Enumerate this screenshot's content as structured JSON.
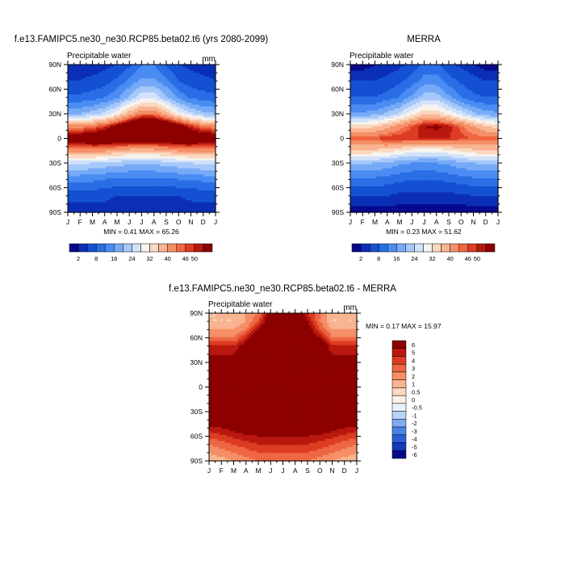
{
  "chart_data": [
    {
      "type": "heatmap",
      "title": "f.e13.FAMIPC5.ne30_ne30.RCP85.beta02.t6 (yrs 2080-2099)",
      "subtitle": "Precipitable water",
      "units": "mm",
      "stats": "MIN =   0.41 MAX =  65.26",
      "x_ticks": [
        "J",
        "F",
        "M",
        "A",
        "M",
        "J",
        "J",
        "A",
        "S",
        "O",
        "N",
        "D",
        "J"
      ],
      "y_ticks": [
        "90N",
        "60N",
        "30N",
        "0",
        "30S",
        "60S",
        "90S"
      ],
      "ylim": [
        -90,
        90
      ],
      "colorbar": {
        "levels": [
          "2",
          "8",
          "16",
          "24",
          "32",
          "40",
          "46",
          "50"
        ],
        "colors": [
          "#08088c",
          "#0a2fb6",
          "#1450d2",
          "#2a6ee6",
          "#4a8cf2",
          "#76aaf6",
          "#a6c8fa",
          "#d2e2fa",
          "#f7f4ee",
          "#fbd8c0",
          "#f9b491",
          "#f58f67",
          "#ee6642",
          "#dc3c22",
          "#b8180e",
          "#8c0000"
        ]
      },
      "lat": [
        -90,
        -70,
        -50,
        -30,
        -15,
        0,
        15,
        30,
        50,
        70,
        90
      ],
      "months": [
        0,
        1,
        2,
        3,
        4,
        5,
        6,
        7,
        8,
        9,
        10,
        11,
        12
      ],
      "values": [
        [
          2,
          2,
          2,
          2,
          2,
          2,
          2,
          2,
          2,
          2,
          2,
          2,
          2
        ],
        [
          5,
          5,
          5,
          5,
          4,
          4,
          4,
          4,
          4,
          4,
          5,
          5,
          5
        ],
        [
          13,
          13,
          13,
          12,
          11,
          11,
          11,
          11,
          11,
          12,
          12,
          13,
          13
        ],
        [
          25,
          25,
          24,
          23,
          22,
          21,
          21,
          21,
          22,
          23,
          24,
          25,
          25
        ],
        [
          42,
          42,
          42,
          41,
          39,
          38,
          38,
          38,
          39,
          41,
          42,
          42,
          42
        ],
        [
          55,
          55,
          56,
          57,
          57,
          56,
          56,
          56,
          57,
          57,
          56,
          55,
          55
        ],
        [
          42,
          42,
          44,
          47,
          52,
          57,
          60,
          60,
          58,
          54,
          48,
          44,
          42
        ],
        [
          20,
          20,
          22,
          25,
          31,
          39,
          44,
          44,
          38,
          30,
          25,
          21,
          20
        ],
        [
          9,
          9,
          10,
          12,
          15,
          21,
          27,
          27,
          21,
          15,
          11,
          10,
          9
        ],
        [
          4,
          4,
          5,
          6,
          9,
          13,
          17,
          17,
          13,
          8,
          6,
          5,
          4
        ],
        [
          2,
          2,
          2,
          3,
          4,
          7,
          12,
          12,
          7,
          4,
          3,
          2,
          2
        ]
      ]
    },
    {
      "type": "heatmap",
      "title": "MERRA",
      "subtitle": "Precipitable water",
      "stats": "MIN =   0.23 MAX =  51.62",
      "x_ticks": [
        "J",
        "F",
        "M",
        "A",
        "M",
        "J",
        "J",
        "A",
        "S",
        "O",
        "N",
        "D",
        "J"
      ],
      "y_ticks": [
        "90N",
        "60N",
        "30N",
        "0",
        "30S",
        "60S",
        "90S"
      ],
      "ylim": [
        -90,
        90
      ],
      "colorbar": {
        "levels": [
          "2",
          "8",
          "16",
          "24",
          "32",
          "40",
          "46",
          "50"
        ],
        "colors": [
          "#08088c",
          "#0a2fb6",
          "#1450d2",
          "#2a6ee6",
          "#4a8cf2",
          "#76aaf6",
          "#a6c8fa",
          "#d2e2fa",
          "#f7f4ee",
          "#fbd8c0",
          "#f9b491",
          "#f58f67",
          "#ee6642",
          "#dc3c22",
          "#b8180e",
          "#8c0000"
        ]
      },
      "lat": [
        -90,
        -70,
        -50,
        -30,
        -15,
        0,
        15,
        30,
        50,
        70,
        90
      ],
      "months": [
        0,
        1,
        2,
        3,
        4,
        5,
        6,
        7,
        8,
        9,
        10,
        11,
        12
      ],
      "values": [
        [
          1,
          1,
          1,
          1,
          1,
          1,
          1,
          1,
          1,
          1,
          1,
          1,
          1
        ],
        [
          4,
          4,
          4,
          4,
          3,
          3,
          3,
          3,
          3,
          3,
          4,
          4,
          4
        ],
        [
          11,
          11,
          11,
          10,
          9,
          8,
          8,
          8,
          9,
          10,
          11,
          11,
          11
        ],
        [
          21,
          21,
          20,
          19,
          17,
          16,
          16,
          16,
          17,
          19,
          20,
          21,
          21
        ],
        [
          36,
          36,
          35,
          34,
          32,
          30,
          29,
          29,
          31,
          33,
          35,
          36,
          36
        ],
        [
          45,
          45,
          46,
          48,
          48,
          48,
          48,
          48,
          48,
          47,
          46,
          45,
          45
        ],
        [
          34,
          34,
          35,
          38,
          42,
          46,
          50,
          51,
          49,
          45,
          40,
          36,
          34
        ],
        [
          17,
          17,
          18,
          21,
          25,
          31,
          35,
          35,
          31,
          26,
          21,
          18,
          17
        ],
        [
          8,
          8,
          8,
          10,
          12,
          17,
          22,
          22,
          17,
          12,
          9,
          8,
          8
        ],
        [
          4,
          4,
          4,
          5,
          7,
          10,
          14,
          14,
          10,
          7,
          5,
          4,
          4
        ],
        [
          1,
          1,
          2,
          2,
          3,
          5,
          9,
          9,
          5,
          3,
          2,
          1,
          1
        ]
      ]
    },
    {
      "type": "heatmap",
      "title": "f.e13.FAMIPC5.ne30_ne30.RCP85.beta02.t6 - MERRA",
      "subtitle": "Precipitable water",
      "units": "mm",
      "stats": "MIN =   0.17 MAX =  15.97",
      "x_ticks": [
        "J",
        "F",
        "M",
        "A",
        "M",
        "J",
        "J",
        "A",
        "S",
        "O",
        "N",
        "D",
        "J"
      ],
      "y_ticks": [
        "90N",
        "60N",
        "30N",
        "0",
        "30S",
        "60S",
        "90S"
      ],
      "ylim": [
        -90,
        90
      ],
      "colorbar": {
        "levels": [
          "6",
          "5",
          "4",
          "3",
          "2",
          "1",
          "0.5",
          "0",
          "-0.5",
          "-1",
          "-2",
          "-3",
          "-4",
          "-5",
          "-6"
        ],
        "colors": [
          "#8c0000",
          "#b8180e",
          "#dc3c22",
          "#ee6642",
          "#f58f67",
          "#f9b491",
          "#fbd8c0",
          "#fdf0e6",
          "#eaf0fb",
          "#b8d2f6",
          "#80aaf2",
          "#4a82e6",
          "#2a5ed6",
          "#1438b6",
          "#08088c"
        ]
      },
      "lat": [
        -90,
        -70,
        -50,
        -40,
        -30,
        -10,
        10,
        30,
        50,
        60,
        70,
        80,
        90
      ],
      "months": [
        0,
        1,
        2,
        3,
        4,
        5,
        6,
        7,
        8,
        9,
        10,
        11,
        12
      ],
      "values": [
        [
          1.2,
          1.5,
          2,
          2.5,
          3,
          3,
          3,
          3,
          3,
          2.5,
          2,
          1.5,
          1.2
        ],
        [
          3,
          3.5,
          4,
          4.5,
          5,
          5,
          5,
          5,
          5,
          4.5,
          4,
          3.5,
          3
        ],
        [
          5.5,
          6,
          6.5,
          7,
          7,
          7,
          7,
          7,
          7,
          7,
          6.5,
          6,
          5.5
        ],
        [
          9,
          8,
          7,
          7,
          7,
          7,
          7,
          7,
          7,
          7,
          7,
          7,
          9
        ],
        [
          9,
          9,
          9,
          9,
          8,
          8,
          8,
          8,
          8,
          9,
          9,
          9,
          9
        ],
        [
          9,
          9,
          9,
          9,
          9,
          9,
          9,
          9,
          9,
          9,
          9,
          9,
          9
        ],
        [
          9,
          9,
          9,
          9,
          9,
          9,
          9,
          9,
          9,
          9,
          9,
          9,
          9
        ],
        [
          7,
          7,
          7,
          8,
          9,
          9,
          9,
          9,
          9,
          8,
          7,
          7,
          7
        ],
        [
          5,
          5,
          5,
          7,
          9,
          9,
          9,
          9,
          9,
          8,
          5,
          5,
          5
        ],
        [
          3,
          3,
          3,
          5,
          8,
          9,
          9,
          9,
          8,
          6,
          3,
          3,
          3
        ],
        [
          2,
          2,
          2,
          3,
          6,
          9,
          9,
          9,
          7,
          4,
          2,
          2,
          2
        ],
        [
          1,
          1,
          1,
          2,
          4,
          8,
          9,
          9,
          6,
          3,
          1,
          1,
          1
        ],
        [
          1,
          1,
          1,
          2,
          3,
          7,
          9,
          9,
          5,
          3,
          1,
          1,
          1
        ]
      ]
    }
  ]
}
